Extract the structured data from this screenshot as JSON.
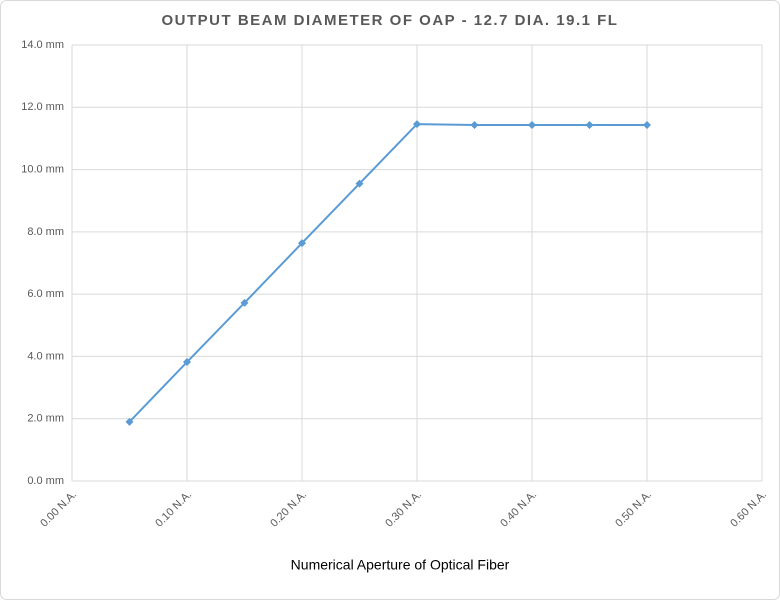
{
  "chart_data": {
    "type": "line",
    "title": "OUTPUT BEAM DIAMETER OF OAP - 12.7 DIA. 19.1 FL",
    "x_label": "Numerical Aperture of Optical Fiber",
    "x": [
      0.05,
      0.1,
      0.15,
      0.2,
      0.25,
      0.3,
      0.35,
      0.4,
      0.45,
      0.5
    ],
    "series": [
      {
        "name": "Output beam diameter",
        "color": "#5b9bd5",
        "values": [
          1.9,
          3.82,
          5.72,
          7.64,
          9.55,
          11.46,
          11.43,
          11.43,
          11.43,
          11.43
        ]
      }
    ],
    "xlim": [
      0,
      0.6
    ],
    "xticks": [
      {
        "value": 0,
        "label": "0.00 N.A."
      },
      {
        "value": 0.1,
        "label": "0.10 N.A."
      },
      {
        "value": 0.2,
        "label": "0.20 N.A."
      },
      {
        "value": 0.3,
        "label": "0.30 N.A."
      },
      {
        "value": 0.4,
        "label": "0.40 N.A."
      },
      {
        "value": 0.5,
        "label": "0.50 N.A."
      },
      {
        "value": 0.6,
        "label": "0.60 N.A."
      }
    ],
    "ylim": [
      0,
      14
    ],
    "yticks": [
      {
        "value": 0,
        "label": "0.0 mm"
      },
      {
        "value": 2,
        "label": "2.0 mm"
      },
      {
        "value": 4,
        "label": "4.0 mm"
      },
      {
        "value": 6,
        "label": "6.0 mm"
      },
      {
        "value": 8,
        "label": "8.0 mm"
      },
      {
        "value": 10,
        "label": "10.0 mm"
      },
      {
        "value": 12,
        "label": "12.0 mm"
      },
      {
        "value": 14,
        "label": "14.0 mm"
      }
    ],
    "grid": true
  }
}
